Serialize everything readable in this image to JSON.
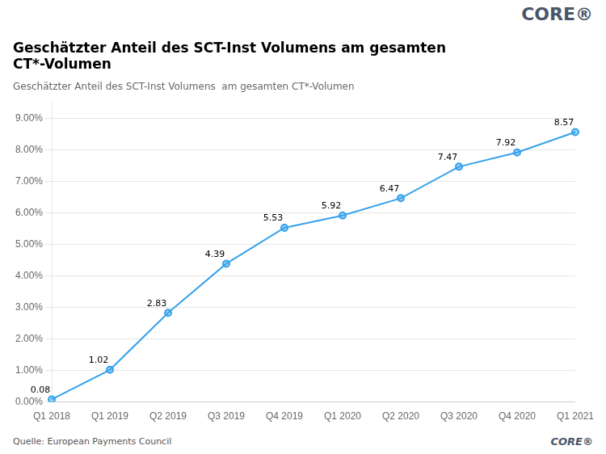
{
  "chart_data": {
    "type": "line",
    "title": "Geschätzter Anteil des SCT-Inst Volumens am gesamten\nCT*-Volumen",
    "subtitle": "Geschätzter Anteil des SCT-Inst Volumens  am gesamten CT*-Volumen",
    "annotations": [
      "CORE®",
      "CORE®",
      "Quelle: European Payments Council"
    ],
    "categories": [
      "Q1 2018",
      "Q1 2019",
      "Q2 2019",
      "Q3 2019",
      "Q4 2019",
      "Q1 2020",
      "Q2 2020",
      "Q3 2020",
      "Q4 2020",
      "Q1 2021"
    ],
    "values": [
      0.08,
      1.02,
      2.83,
      4.39,
      5.53,
      5.92,
      6.47,
      7.47,
      7.92,
      8.57
    ],
    "ylim": [
      0.0,
      9.5
    ],
    "yticks": [
      {
        "value": 0.0,
        "label": "0.00%"
      },
      {
        "value": 1.0,
        "label": "1.00%"
      },
      {
        "value": 2.0,
        "label": "2.00%"
      },
      {
        "value": 3.0,
        "label": "3.00%"
      },
      {
        "value": 4.0,
        "label": "4.00%"
      },
      {
        "value": 5.0,
        "label": "5.00%"
      },
      {
        "value": 6.0,
        "label": "6.00%"
      },
      {
        "value": 7.0,
        "label": "7.00%"
      },
      {
        "value": 8.0,
        "label": "8.00%"
      },
      {
        "value": 9.0,
        "label": "9.00%"
      }
    ],
    "grid": true,
    "data_labels": true,
    "marker": "circle"
  }
}
